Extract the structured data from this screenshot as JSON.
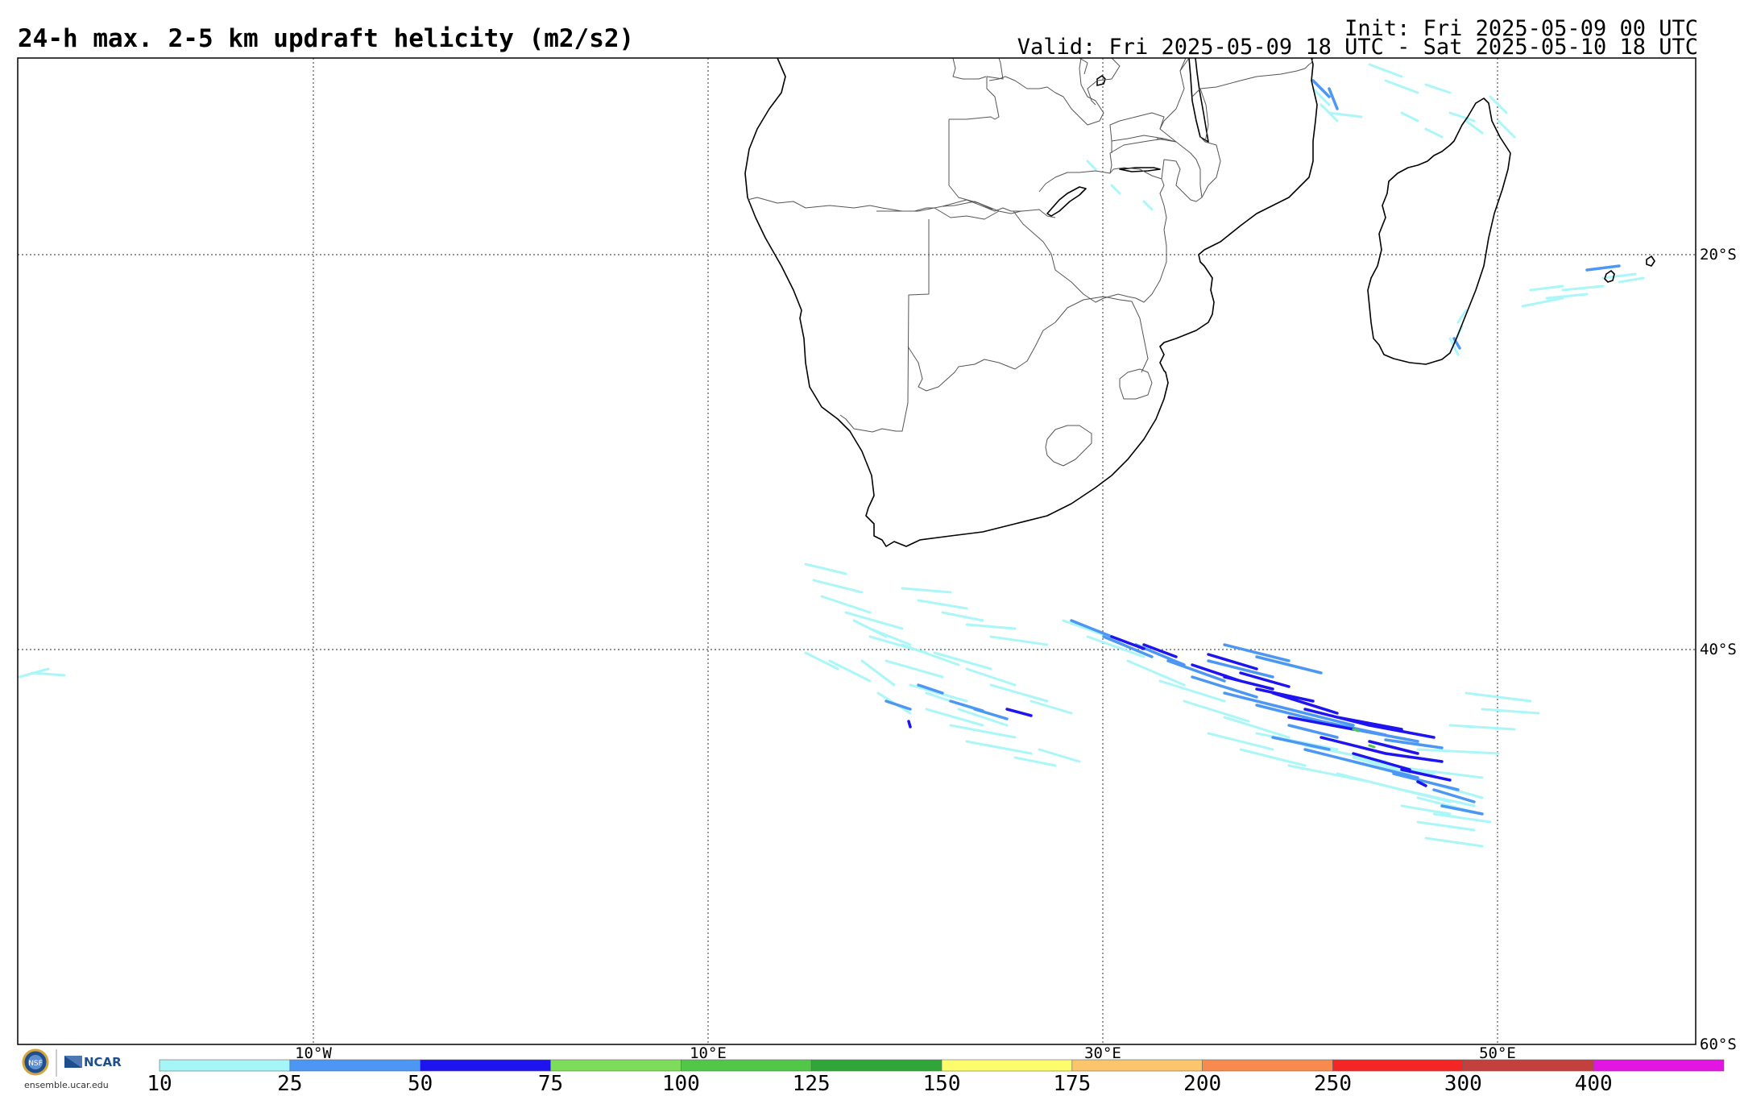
{
  "header": {
    "title": "24-h max. 2-5 km updraft helicity (m2/s2)",
    "init": "Init: Fri 2025-05-09 00 UTC",
    "valid": "Valid: Fri 2025-05-09 18 UTC - Sat 2025-05-10 18 UTC"
  },
  "map": {
    "lon_range": [
      -25,
      60
    ],
    "lat_range": [
      -60,
      -10
    ],
    "lat_labels": [
      "20°S",
      "40°S",
      "60°S"
    ],
    "lon_labels": [
      "10°W",
      "10°E",
      "30°E",
      "50°E"
    ],
    "gridlines": true,
    "colors": {
      "coast": "#000000",
      "border": "#555555",
      "grid": "#555555"
    }
  },
  "colorbar": {
    "labels": [
      "10",
      "25",
      "50",
      "75",
      "100",
      "125",
      "150",
      "175",
      "200",
      "250",
      "300",
      "400"
    ],
    "colors": [
      "#a6f6f8",
      "#4c97f4",
      "#1e14f0",
      "#7ddd5a",
      "#52c747",
      "#2fa53a",
      "#fdfc6a",
      "#fbc56b",
      "#f98a4f",
      "#f42525",
      "#c3403d",
      "#e215e3"
    ]
  },
  "logo": {
    "org1": "NSF",
    "org2": "NCAR",
    "url": "ensemble.ucar.edu"
  }
}
